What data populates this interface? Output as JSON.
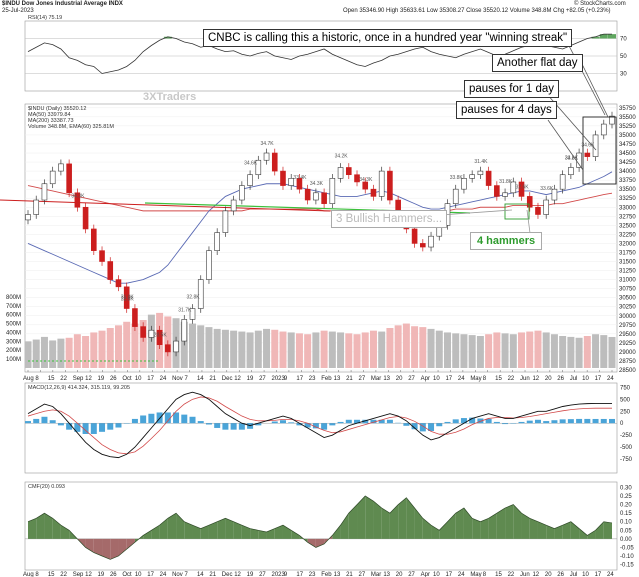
{
  "header": {
    "symbol_title": "$INDU Dow Jones Industrial Average INDX",
    "date": "25-Jul-2023",
    "ohlc": "Open 35346.90  High 35633.61  Low 35308.27  Close 35520.12  Volume 348.8M  Chg +82.05 (+0.23%)",
    "credit": "© StockCharts.com"
  },
  "callouts": {
    "cnbc": "CNBC is calling this a historic, once in a hundred year \"winning streak\"",
    "flat_day": "Another flat day",
    "pause_1": "pauses for 1 day",
    "pause_4": "pauses for 4 days",
    "bullish_hammers": "3 Bullish Hammers...",
    "four_hammers": "4 hammers"
  },
  "watermark": "3XTraders",
  "colors": {
    "up": "#3a3a3a",
    "down": "#cc1e1e",
    "ma50": "#5a6ab4",
    "ma200": "#d24a4a",
    "trend": "#3cc03c",
    "macd_hist": "#4aa4d8",
    "cmf_pos": "#5f8a50",
    "cmf_neg": "#a56a6a",
    "rsi_fill": "#5fa65f"
  },
  "chart_data": [
    {
      "type": "line",
      "name": "rsi-panel",
      "title": "RSI(14) 75.19",
      "ylim": [
        10,
        90
      ],
      "levels": [
        70,
        50,
        30
      ],
      "tick_labels": [
        "70",
        "50",
        "30"
      ],
      "values": [
        55,
        60,
        65,
        63,
        58,
        48,
        45,
        40,
        38,
        30,
        32,
        34,
        38,
        45,
        55,
        62,
        68,
        72,
        70,
        66,
        64,
        60,
        62,
        58,
        55,
        56,
        52,
        50,
        53,
        55,
        50,
        48,
        46,
        50,
        52,
        55,
        58,
        52,
        48,
        44,
        40,
        38,
        42,
        45,
        50,
        52,
        55,
        58,
        60,
        55,
        52,
        50,
        48,
        52,
        55,
        58,
        54,
        50,
        52,
        56,
        60,
        62,
        64,
        62,
        60,
        58,
        62,
        66,
        70,
        72,
        75,
        75
      ]
    },
    {
      "type": "candlestick",
      "name": "price-panel",
      "title": "$INDU (Daily) 35520.12",
      "legend": [
        "MA(50) 33979.84",
        "MA(200) 33387.73",
        "Volume 348.8M, EMA(60) 325.81M"
      ],
      "ylim": [
        28500,
        35800
      ],
      "y_ticks": [
        35750,
        35500,
        35250,
        35000,
        34750,
        34500,
        34250,
        34000,
        33750,
        33500,
        33250,
        33000,
        32750,
        32500,
        32250,
        32000,
        31750,
        31500,
        31250,
        31000,
        30750,
        30500,
        30250,
        30000,
        29750,
        29500,
        29250,
        29000,
        28750,
        28500
      ],
      "x_labels": [
        "Aug",
        "8",
        "15",
        "22",
        "Sep",
        "12",
        "19",
        "26",
        "Oct",
        "10",
        "17",
        "24",
        "Nov",
        "7",
        "14",
        "21",
        "Dec",
        "12",
        "19",
        "27",
        "2023",
        "9",
        "17",
        "23",
        "Feb",
        "13",
        "21",
        "27",
        "Mar",
        "13",
        "20",
        "27",
        "Apr",
        "10",
        "17",
        "24",
        "May",
        "8",
        "15",
        "22",
        "Jun",
        "12",
        "20",
        "26",
        "Jul",
        "10",
        "17",
        "24"
      ],
      "closes": [
        32800,
        33200,
        33650,
        34000,
        34200,
        33400,
        33000,
        32400,
        31800,
        31500,
        31000,
        30800,
        30200,
        29700,
        29400,
        29600,
        29200,
        29000,
        29300,
        29900,
        30200,
        31000,
        31800,
        32300,
        32900,
        33200,
        33600,
        33900,
        34300,
        34500,
        34000,
        33600,
        33800,
        33500,
        33200,
        33400,
        33100,
        33800,
        34100,
        33900,
        33700,
        33500,
        33300,
        34000,
        33200,
        32800,
        32400,
        32000,
        31900,
        32200,
        32500,
        33100,
        33500,
        33800,
        33900,
        34000,
        33600,
        33300,
        33400,
        33700,
        33300,
        33000,
        32800,
        33200,
        33500,
        33900,
        34100,
        34500,
        34400,
        35000,
        35300,
        35520
      ],
      "ma50": [
        32000,
        31900,
        31800,
        31700,
        31600,
        31500,
        31400,
        31300,
        31200,
        31100,
        31000,
        30900,
        30900,
        30950,
        31000,
        31100,
        31200,
        31400,
        31700,
        32000,
        32300,
        32600,
        32900,
        33100,
        33300,
        33400,
        33500,
        33550,
        33600,
        33650,
        33650,
        33650,
        33600,
        33550,
        33500,
        33450,
        33400,
        33350,
        33300,
        33300,
        33300,
        33350,
        33400,
        33450,
        33400,
        33300,
        33200,
        33100,
        33000,
        32950,
        32950,
        33000,
        33050,
        33100,
        33150,
        33200,
        33250,
        33300,
        33350,
        33400,
        33450,
        33450,
        33400,
        33350,
        33400,
        33450,
        33500,
        33550,
        33650,
        33750,
        33850,
        33980
      ],
      "ma200": [
        33600,
        33550,
        33500,
        33450,
        33400,
        33350,
        33300,
        33250,
        33200,
        33150,
        33100,
        33050,
        33000,
        32950,
        32900,
        32900,
        32900,
        32900,
        32900,
        32900,
        32900,
        32900,
        32900,
        32900,
        32900,
        32900,
        32900,
        32950,
        32950,
        32950,
        32950,
        32950,
        32950,
        32950,
        32950,
        32950,
        32900,
        32900,
        32900,
        32900,
        32900,
        32900,
        32900,
        32900,
        32900,
        32900,
        32900,
        32900,
        32900,
        32900,
        32900,
        32900,
        32950,
        32950,
        32950,
        33000,
        33000,
        33000,
        33000,
        33050,
        33050,
        33050,
        33050,
        33050,
        33100,
        33100,
        33150,
        33200,
        33250,
        33300,
        33350,
        33390
      ],
      "volumes_m": [
        300,
        320,
        350,
        310,
        330,
        340,
        380,
        360,
        400,
        420,
        450,
        480,
        520,
        500,
        540,
        600,
        620,
        580,
        560,
        520,
        500,
        480,
        460,
        440,
        430,
        420,
        410,
        400,
        420,
        440,
        430,
        410,
        400,
        390,
        380,
        400,
        420,
        410,
        400,
        390,
        380,
        400,
        420,
        410,
        450,
        480,
        500,
        470,
        460,
        440,
        420,
        400,
        390,
        380,
        370,
        360,
        380,
        400,
        390,
        380,
        400,
        410,
        420,
        400,
        380,
        360,
        350,
        340,
        360,
        380,
        370,
        349
      ],
      "peak_labels": [
        "34.3K",
        "32.8K",
        "31.0K",
        "28.5K",
        "32.8K",
        "31.7K",
        "34.6K",
        "34.7K",
        "33.4K",
        "34.3K",
        "34.2K",
        "34.3K",
        "32.6K",
        "33.4K",
        "33.8K",
        "31.4K",
        "31.8K",
        "32.6K",
        "33.6K",
        "34.2K",
        "34.6K",
        "33.6K"
      ]
    },
    {
      "type": "line",
      "name": "macd-panel",
      "title": "MACD(12,26,9) 414.324, 315.119, 99.205",
      "ylim": [
        -1000,
        800
      ],
      "y_ticks": [
        "750",
        "500",
        "250",
        "0",
        "-250",
        "-500",
        "-750"
      ],
      "macd": [
        200,
        300,
        400,
        350,
        200,
        0,
        -200,
        -400,
        -550,
        -650,
        -700,
        -720,
        -650,
        -500,
        -300,
        -100,
        100,
        300,
        500,
        600,
        650,
        600,
        500,
        350,
        200,
        100,
        0,
        -50,
        0,
        50,
        100,
        150,
        100,
        0,
        -100,
        -200,
        -300,
        -250,
        -150,
        -50,
        0,
        50,
        100,
        150,
        200,
        150,
        50,
        -100,
        -250,
        -350,
        -300,
        -200,
        -100,
        0,
        100,
        150,
        200,
        150,
        100,
        100,
        150,
        200,
        250,
        250,
        300,
        350,
        380,
        400,
        410,
        414,
        414,
        414
      ],
      "signal": [
        150,
        200,
        250,
        280,
        250,
        150,
        0,
        -150,
        -300,
        -450,
        -550,
        -620,
        -640,
        -600,
        -480,
        -320,
        -150,
        50,
        250,
        400,
        500,
        550,
        530,
        460,
        350,
        250,
        150,
        80,
        50,
        50,
        60,
        80,
        80,
        50,
        0,
        -80,
        -150,
        -200,
        -180,
        -130,
        -80,
        -30,
        20,
        70,
        120,
        140,
        110,
        40,
        -60,
        -170,
        -230,
        -230,
        -190,
        -120,
        -30,
        40,
        100,
        120,
        120,
        110,
        120,
        140,
        170,
        200,
        230,
        260,
        285,
        300,
        310,
        315,
        315,
        315
      ]
    },
    {
      "type": "area",
      "name": "cmf-panel",
      "title": "CMF(20) 0.093",
      "ylim": [
        -0.17,
        0.32
      ],
      "y_ticks": [
        "0.30",
        "0.25",
        "0.20",
        "0.15",
        "0.10",
        "0.05",
        "0.00",
        "-0.05",
        "-0.10",
        "-0.15"
      ],
      "values": [
        0.1,
        0.12,
        0.15,
        0.12,
        0.08,
        0.05,
        0.0,
        -0.05,
        -0.08,
        -0.1,
        -0.12,
        -0.1,
        -0.06,
        -0.02,
        0.02,
        0.05,
        0.08,
        0.12,
        0.15,
        0.1,
        0.08,
        0.06,
        0.08,
        0.1,
        0.12,
        0.1,
        0.08,
        0.06,
        0.05,
        0.04,
        0.06,
        0.08,
        0.05,
        0.02,
        -0.02,
        -0.05,
        -0.03,
        0.02,
        0.08,
        0.15,
        0.2,
        0.25,
        0.22,
        0.18,
        0.15,
        0.2,
        0.24,
        0.18,
        0.12,
        0.08,
        0.05,
        0.1,
        0.15,
        0.18,
        0.12,
        0.1,
        0.12,
        0.15,
        0.18,
        0.2,
        0.15,
        0.12,
        0.1,
        0.08,
        0.06,
        0.08,
        0.1,
        0.06,
        0.02,
        0.05,
        0.1,
        0.093
      ]
    }
  ]
}
